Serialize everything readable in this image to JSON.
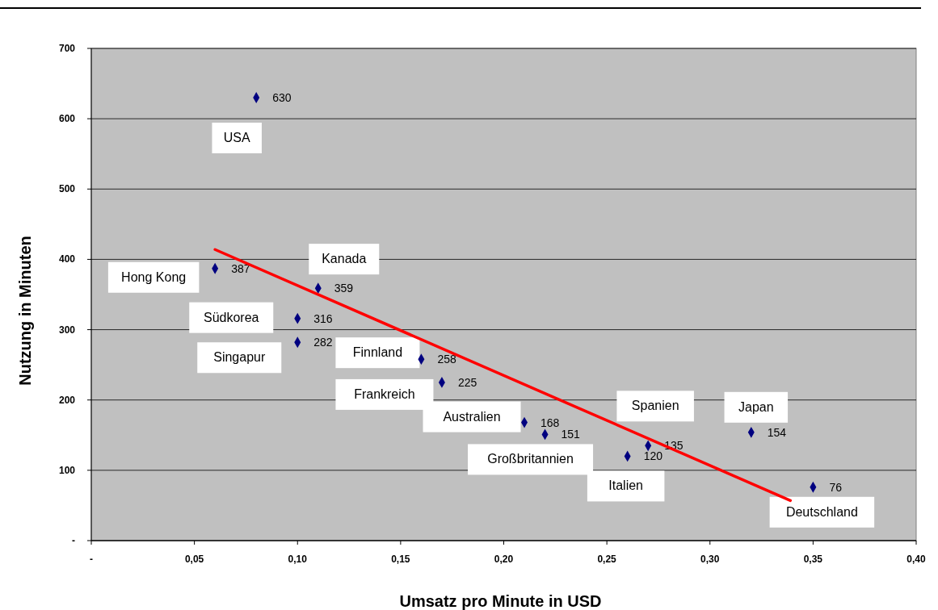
{
  "chart_data": {
    "type": "scatter",
    "xlabel": "Umsatz pro Minute in USD",
    "ylabel": "Nutzung in Minuten",
    "xlim": [
      0,
      0.4
    ],
    "xticks": [
      {
        "value": 0,
        "label": "-"
      },
      {
        "value": 0.05,
        "label": "0,05"
      },
      {
        "value": 0.1,
        "label": "0,10"
      },
      {
        "value": 0.15,
        "label": "0,15"
      },
      {
        "value": 0.2,
        "label": "0,20"
      },
      {
        "value": 0.25,
        "label": "0,25"
      },
      {
        "value": 0.3,
        "label": "0,30"
      },
      {
        "value": 0.35,
        "label": "0,35"
      },
      {
        "value": 0.4,
        "label": "0,40"
      }
    ],
    "ylim": [
      0,
      700
    ],
    "yticks": [
      {
        "value": 0,
        "label": "-"
      },
      100,
      200,
      300,
      400,
      500,
      600,
      700
    ],
    "grid": "y",
    "legend": false,
    "marker": "diamond",
    "series": [
      {
        "color": "#000080",
        "x": [
          0.08,
          0.06,
          0.11,
          0.1,
          0.1,
          0.16,
          0.17,
          0.21,
          0.22,
          0.27,
          0.26,
          0.32,
          0.35
        ],
        "values": [
          630,
          387,
          359,
          316,
          282,
          258,
          225,
          168,
          151,
          135,
          120,
          154,
          76
        ],
        "value_labels": [
          "630",
          "387",
          "359",
          "316",
          "282",
          "258",
          "225",
          "168",
          "151",
          "135",
          "120",
          "154",
          "76"
        ]
      },
      {
        "type": "line",
        "color": "#ff0000",
        "marker": "none",
        "x": [
          0.06,
          0.339
        ],
        "values": [
          414,
          57
        ]
      }
    ],
    "annotations": [
      {
        "text": "USA",
        "x": 0.08,
        "y": 630
      },
      {
        "text": "Hong Kong",
        "x": 0.06,
        "y": 387
      },
      {
        "text": "Kanada",
        "x": 0.11,
        "y": 359
      },
      {
        "text": "Südkorea",
        "x": 0.1,
        "y": 316
      },
      {
        "text": "Singapur",
        "x": 0.1,
        "y": 282
      },
      {
        "text": "Finnland",
        "x": 0.16,
        "y": 258
      },
      {
        "text": "Frankreich",
        "x": 0.17,
        "y": 225
      },
      {
        "text": "Australien",
        "x": 0.21,
        "y": 168
      },
      {
        "text": "Großbritannien",
        "x": 0.22,
        "y": 151
      },
      {
        "text": "Spanien",
        "x": 0.27,
        "y": 135
      },
      {
        "text": "Italien",
        "x": 0.26,
        "y": 120
      },
      {
        "text": "Japan",
        "x": 0.32,
        "y": 154
      },
      {
        "text": "Deutschland",
        "x": 0.35,
        "y": 76
      }
    ]
  }
}
